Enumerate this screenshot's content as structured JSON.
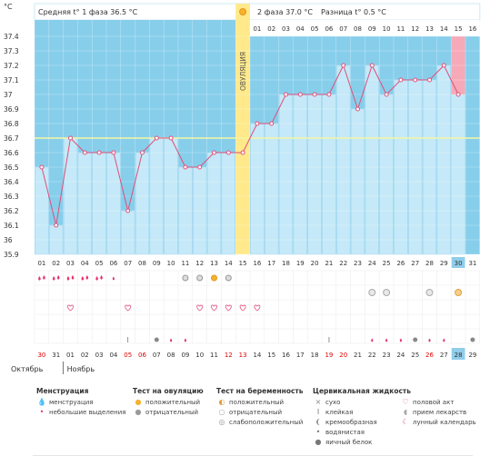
{
  "header": {
    "phase1_label": "Средняя t° 1 фаза 36.5 °C",
    "phase2_label": "2 фаза 37.0 °C",
    "diff_label": "Разница t° 0.5 °C",
    "unit_label": "°C"
  },
  "ovulation_label": "ОВУЛЯЦИЯ",
  "chart_data": {
    "type": "line",
    "ylim": [
      35.9,
      37.4
    ],
    "y_ticks": [
      "37.4",
      "37.3",
      "37.2",
      "37.1",
      "37",
      "36.9",
      "36.8",
      "36.7",
      "36.6",
      "36.5",
      "36.4",
      "36.3",
      "36.2",
      "36.1",
      "36",
      "35.9"
    ],
    "cycle_days": [
      "01",
      "02",
      "03",
      "04",
      "05",
      "06",
      "07",
      "08",
      "09",
      "10",
      "11",
      "12",
      "13",
      "14",
      "15",
      "16",
      "17",
      "18",
      "19",
      "20",
      "21",
      "22",
      "23",
      "24",
      "25",
      "26",
      "27",
      "28",
      "29",
      "30",
      "31"
    ],
    "phase2_days": [
      "01",
      "02",
      "03",
      "04",
      "05",
      "06",
      "07",
      "08",
      "09",
      "10",
      "11",
      "12",
      "13",
      "14",
      "15",
      "16"
    ],
    "temperatures": [
      36.5,
      36.1,
      36.7,
      36.6,
      36.6,
      36.6,
      36.2,
      36.6,
      36.7,
      36.7,
      36.5,
      36.5,
      36.6,
      36.6,
      36.6,
      36.8,
      36.8,
      37.0,
      37.0,
      37.0,
      37.0,
      37.2,
      36.9,
      37.2,
      37.0,
      37.1,
      37.1,
      37.1,
      37.2,
      37.0,
      null
    ],
    "coverline": 36.7,
    "ovulation_day": 15,
    "highlight_day": 30,
    "grid": true
  },
  "calendar_dates": [
    "30",
    "31",
    "01",
    "02",
    "03",
    "04",
    "05",
    "06",
    "07",
    "08",
    "09",
    "10",
    "11",
    "12",
    "13",
    "14",
    "15",
    "16",
    "17",
    "18",
    "19",
    "20",
    "21",
    "22",
    "23",
    "24",
    "25",
    "26",
    "27",
    "28",
    "29"
  ],
  "weekend_date_indices": [
    0,
    6,
    7,
    13,
    14,
    20,
    21,
    27
  ],
  "today_date_index": 29,
  "months": {
    "prev": "Октябрь",
    "current": "Ноябрь"
  },
  "marker_rows": {
    "menstruation": [
      "heavy",
      "heavy",
      "heavy",
      "heavy",
      "heavy",
      "light",
      "",
      "",
      "",
      "",
      "",
      "",
      "",
      "",
      "",
      "",
      "",
      "",
      "",
      "",
      "",
      "",
      "",
      "",
      "",
      "",
      "",
      "",
      "",
      "",
      ""
    ],
    "ovulation_test": [
      "",
      "",
      "",
      "",
      "",
      "",
      "",
      "",
      "",
      "",
      "neg",
      "neg",
      "pos",
      "neg",
      "",
      "",
      "",
      "",
      "",
      "",
      "",
      "",
      "",
      "",
      "",
      "",
      "",
      "",
      "",
      "",
      ""
    ],
    "pregnancy_test": [
      "",
      "",
      "",
      "",
      "",
      "",
      "",
      "",
      "",
      "",
      "",
      "",
      "",
      "",
      "",
      "",
      "",
      "",
      "",
      "",
      "",
      "",
      "",
      "weak",
      "weak",
      "",
      "",
      "weak",
      "",
      "pos",
      ""
    ],
    "sex": [
      "",
      "",
      "heart",
      "",
      "",
      "",
      "heart",
      "",
      "",
      "",
      "",
      "heart",
      "heart",
      "heart",
      "heart",
      "heart",
      "",
      "",
      "",
      "",
      "",
      "",
      "",
      "",
      "",
      "",
      "",
      "",
      "",
      "",
      ""
    ],
    "mucus": [
      "",
      "",
      "",
      "",
      "",
      "",
      "",
      "",
      "creamy",
      "watery",
      "watery",
      "",
      "",
      "",
      "",
      "",
      "",
      "",
      "",
      "",
      "",
      "",
      "",
      "",
      "",
      "",
      "",
      "",
      "",
      "",
      ""
    ]
  },
  "legend": {
    "sections": [
      {
        "title": "Менструация",
        "items": [
          {
            "icon": "drops",
            "label": "менструация"
          },
          {
            "icon": "drop",
            "label": "небольшие выделения"
          }
        ]
      },
      {
        "title": "Тест на овуляцию",
        "items": [
          {
            "icon": "pos-sun",
            "label": "положительный"
          },
          {
            "icon": "neg-sun",
            "label": "отрицательный"
          }
        ]
      },
      {
        "title": "Тест на беременность",
        "items": [
          {
            "icon": "preg-pos",
            "label": "положительный"
          },
          {
            "icon": "preg-neg",
            "label": "отрицательный"
          },
          {
            "icon": "preg-weak",
            "label": "слабоположительный"
          }
        ]
      },
      {
        "title": "Цервикальная жидкость",
        "items": [
          {
            "icon": "dry",
            "label": "сухо"
          },
          {
            "icon": "sticky",
            "label": "клейкая"
          },
          {
            "icon": "creamy",
            "label": "кремообразная"
          },
          {
            "icon": "watery",
            "label": "водянистая"
          },
          {
            "icon": "eggwhite",
            "label": "яичный белок"
          }
        ]
      },
      {
        "title": "",
        "items": [
          {
            "icon": "heart",
            "label": "половой акт"
          },
          {
            "icon": "pill",
            "label": "прием лекарств"
          },
          {
            "icon": "moon",
            "label": "лунный календарь"
          }
        ]
      }
    ]
  },
  "colors": {
    "plot_bg": "#87ceeb",
    "bar": "#c5e9f8",
    "bar_border": "#8fd0ee",
    "line": "#e0507a",
    "ovulation": "#ffe98a",
    "coverline": "#f5f5a0",
    "highlight_bar": "#f6aab8",
    "highlight_cell": "#90cdea",
    "weekend": "#e00000"
  }
}
